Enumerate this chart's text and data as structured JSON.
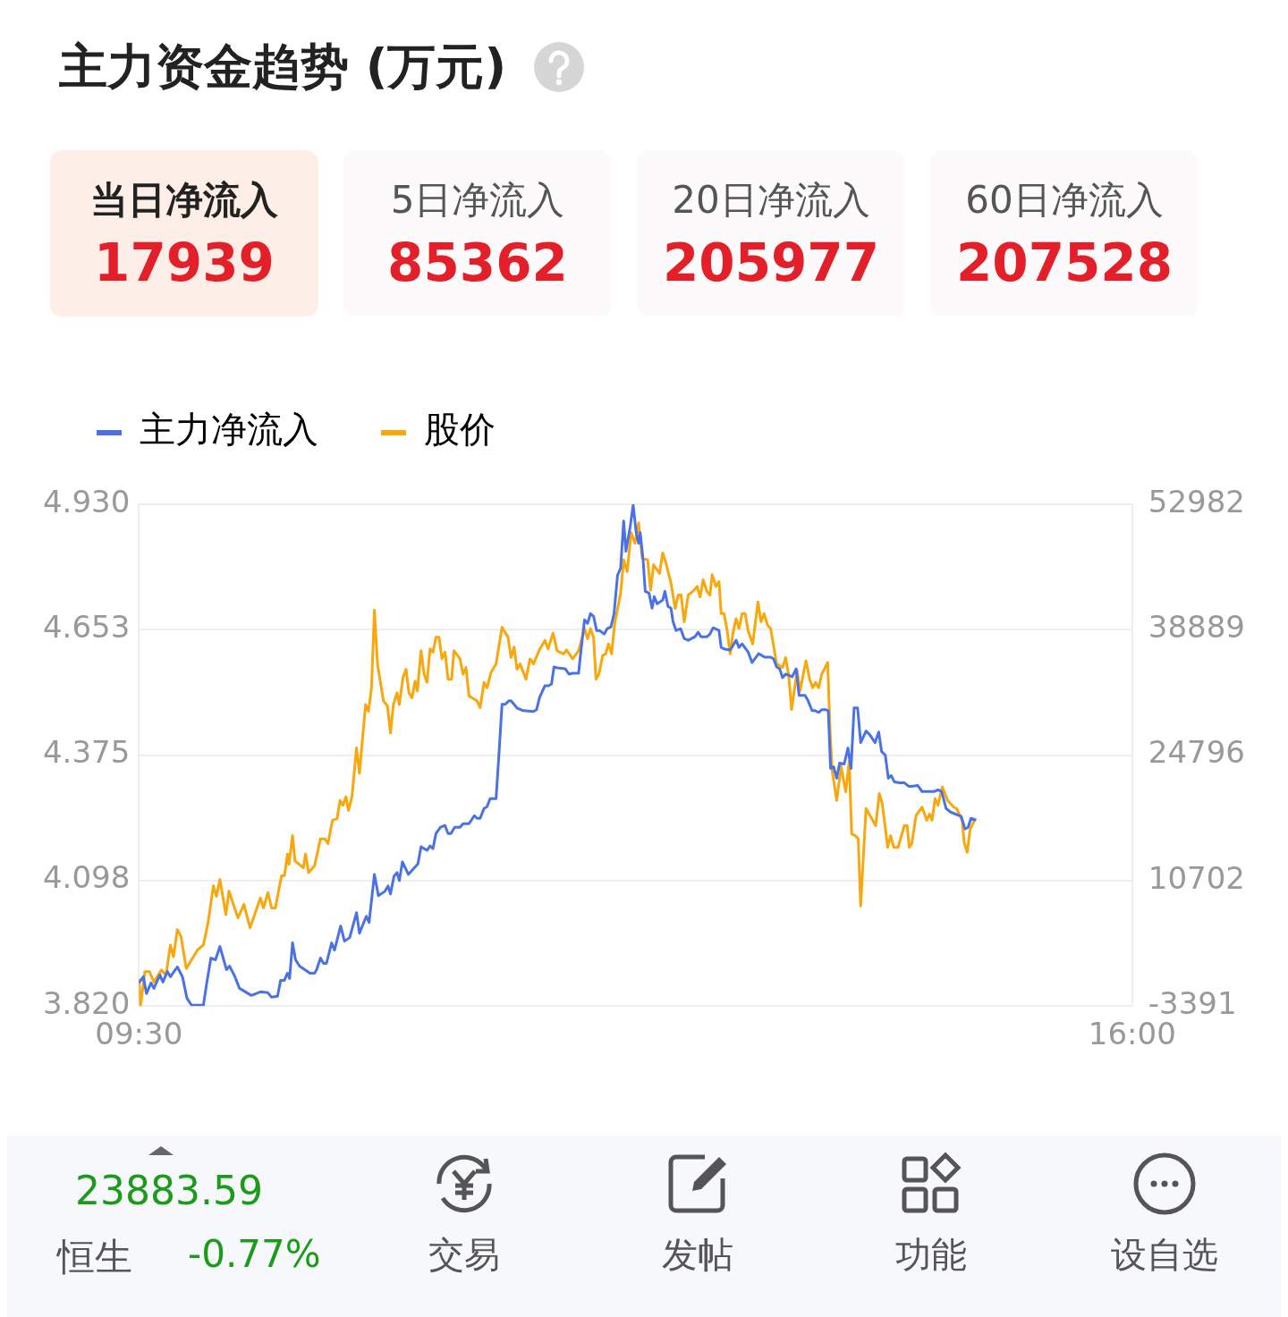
{
  "chart_data": {
    "type": "line",
    "title": "主力资金趋势 (万元)",
    "annotations": [
      "当日净流入",
      "17939",
      "5日净流入",
      "85362",
      "20日净流入",
      "205977",
      "60日净流入",
      "207528",
      "23883.59",
      "恒生",
      "-0.77%",
      "交易",
      "发帖",
      "功能",
      "设自选"
    ],
    "xlim": [
      9.5,
      16
    ],
    "xticks": [
      {
        "value": 9.5,
        "label": "09:30"
      },
      {
        "value": 16,
        "label": "16:00"
      }
    ],
    "ylim": [
      3.82,
      4.93
    ],
    "yticks": [
      {
        "value": 3.82,
        "label": "3.820"
      },
      4.098,
      4.375,
      4.653,
      {
        "value": 4.93,
        "label": "4.930"
      }
    ],
    "y2lim": [
      -3391,
      52982
    ],
    "y2ticks": [
      -3391,
      10702,
      24796,
      38889,
      52982
    ],
    "grid": "y",
    "legend": "top left",
    "marker": "none",
    "line_style": "solid",
    "series": [
      {
        "name": "主力净流入",
        "color": "#4a72e6",
        "axis": "y2",
        "x": [
          9.5,
          9.529,
          9.549,
          9.579,
          9.598,
          9.637,
          9.657,
          9.686,
          9.706,
          9.751,
          9.785,
          9.814,
          9.844,
          9.893,
          9.922,
          9.942,
          9.971,
          10.001,
          10.03,
          10.073,
          10.093,
          10.128,
          10.158,
          10.197,
          10.236,
          10.295,
          10.344,
          10.368,
          10.407,
          10.427,
          10.452,
          10.472,
          10.486,
          10.505,
          10.525,
          10.551,
          10.619,
          10.649,
          10.663,
          10.688,
          10.708,
          10.727,
          10.761,
          10.78,
          10.82,
          10.845,
          10.879,
          10.924,
          10.943,
          10.988,
          11.006,
          11.041,
          11.067,
          11.11,
          11.13,
          11.146,
          11.169,
          11.189,
          11.204,
          11.224,
          11.263,
          11.316,
          11.326,
          11.346,
          11.385,
          11.405,
          11.424,
          11.444,
          11.474,
          11.503,
          11.523,
          11.542,
          11.566,
          11.601,
          11.621,
          11.66,
          11.695,
          11.713,
          11.733,
          11.758,
          11.778,
          11.798,
          11.837,
          11.857,
          11.876,
          11.896,
          11.921,
          11.935,
          11.974,
          12.014,
          12.082,
          12.102,
          12.122,
          12.157,
          12.181,
          12.2,
          12.216,
          12.239,
          12.289,
          12.314,
          12.338,
          12.377,
          12.393,
          12.416,
          12.436,
          12.455,
          12.475,
          12.495,
          12.514,
          12.544,
          12.564,
          12.589,
          12.609,
          12.632,
          12.652,
          12.672,
          12.687,
          12.715,
          12.734,
          12.754,
          12.77,
          12.78,
          12.799,
          12.813,
          12.838,
          12.858,
          12.872,
          12.891,
          12.927,
          12.942,
          12.962,
          12.982,
          12.995,
          13.015,
          13.045,
          13.068,
          13.094,
          13.139,
          13.159,
          13.178,
          13.217,
          13.237,
          13.257,
          13.296,
          13.31,
          13.335,
          13.369,
          13.408,
          13.427,
          13.447,
          13.486,
          13.512,
          13.555,
          13.594,
          13.634,
          13.653,
          13.673,
          13.693,
          13.712,
          13.732,
          13.775,
          13.801,
          13.82,
          13.859,
          13.879,
          13.905,
          13.924,
          13.948,
          13.968,
          13.997,
          14.011,
          14.026,
          14.046,
          14.066,
          14.085,
          14.115,
          14.14,
          14.16,
          14.18,
          14.203,
          14.223,
          14.258,
          14.282,
          14.317,
          14.341,
          14.36,
          14.384,
          14.404,
          14.423,
          14.443,
          14.478,
          14.508,
          14.537,
          14.557,
          14.596,
          14.625,
          14.704,
          14.729,
          14.753,
          14.782,
          14.812,
          14.841,
          14.881,
          14.906,
          14.926,
          14.945,
          14.979
        ],
        "values": [
          -800,
          -100,
          -2000,
          -800,
          -1400,
          100,
          -700,
          500,
          -100,
          1000,
          -100,
          -2500,
          -3300,
          -3300,
          -3300,
          -1000,
          2000,
          1800,
          3300,
          700,
          1100,
          -100,
          -1400,
          -1800,
          -2200,
          -1800,
          -1900,
          -2400,
          -2300,
          -500,
          -500,
          300,
          -300,
          3700,
          1800,
          1100,
          300,
          300,
          700,
          2000,
          1400,
          1400,
          3700,
          2900,
          5600,
          3900,
          4300,
          7100,
          4800,
          6700,
          6000,
          11400,
          9000,
          9500,
          10100,
          9200,
          11200,
          11600,
          10700,
          12800,
          11400,
          12400,
          12600,
          14500,
          14100,
          14600,
          14300,
          16000,
          16700,
          16900,
          16000,
          16000,
          16700,
          16700,
          17100,
          17100,
          18000,
          17700,
          17700,
          18800,
          19000,
          19900,
          19900,
          25200,
          30500,
          30500,
          30900,
          30900,
          30100,
          29800,
          29700,
          29900,
          31300,
          32600,
          32600,
          32800,
          34700,
          34600,
          34500,
          33900,
          34000,
          34000,
          36600,
          40000,
          39600,
          40700,
          40400,
          38800,
          38800,
          38400,
          39000,
          39200,
          40700,
          45000,
          45800,
          51100,
          47700,
          50500,
          52900,
          49800,
          48600,
          49800,
          46800,
          43200,
          43000,
          41300,
          42600,
          41800,
          42200,
          43200,
          41500,
          41300,
          39800,
          38800,
          39000,
          37900,
          37700,
          38100,
          38600,
          38100,
          38100,
          38400,
          39100,
          38800,
          36900,
          36700,
          36600,
          37700,
          36900,
          37300,
          36400,
          35200,
          36200,
          35800,
          35800,
          35600,
          34700,
          34500,
          33500,
          33900,
          33600,
          34500,
          31500,
          31500,
          30900,
          29800,
          29800,
          29600,
          29900,
          29900,
          29800,
          23300,
          23500,
          22200,
          23900,
          23800,
          25600,
          23300,
          30100,
          30100,
          26200,
          27500,
          27100,
          26200,
          27400,
          25200,
          24800,
          22200,
          22500,
          21800,
          21700,
          21700,
          21300,
          21300,
          21400,
          20700,
          20700,
          20900,
          20700,
          18800,
          18400,
          18200,
          17900,
          16500,
          16700,
          17700,
          17500
        ]
      },
      {
        "name": "股价",
        "color": "#f8a70c",
        "x": [
          9.5,
          9.51,
          9.539,
          9.569,
          9.598,
          9.647,
          9.677,
          9.706,
          9.726,
          9.751,
          9.775,
          9.81,
          9.883,
          9.922,
          9.952,
          9.987,
          10.007,
          10.03,
          10.069,
          10.089,
          10.148,
          10.187,
          10.227,
          10.295,
          10.315,
          10.344,
          10.368,
          10.393,
          10.433,
          10.452,
          10.472,
          10.482,
          10.505,
          10.521,
          10.576,
          10.59,
          10.61,
          10.649,
          10.688,
          10.717,
          10.737,
          10.766,
          10.796,
          10.816,
          10.835,
          10.855,
          10.871,
          10.894,
          10.924,
          10.943,
          10.983,
          11.002,
          11.022,
          11.041,
          11.061,
          11.1,
          11.126,
          11.146,
          11.165,
          11.189,
          11.204,
          11.228,
          11.248,
          11.267,
          11.287,
          11.307,
          11.322,
          11.346,
          11.366,
          11.385,
          11.405,
          11.424,
          11.444,
          11.464,
          11.483,
          11.503,
          11.523,
          11.546,
          11.562,
          11.601,
          11.621,
          11.64,
          11.66,
          11.713,
          11.733,
          11.758,
          11.778,
          11.804,
          11.837,
          11.876,
          11.915,
          11.935,
          11.955,
          11.974,
          11.994,
          12.033,
          12.059,
          12.082,
          12.118,
          12.157,
          12.177,
          12.21,
          12.236,
          12.279,
          12.298,
          12.338,
          12.377,
          12.416,
          12.436,
          12.455,
          12.475,
          12.491,
          12.51,
          12.534,
          12.554,
          12.573,
          12.593,
          12.613,
          12.652,
          12.672,
          12.695,
          12.721,
          12.746,
          12.77,
          12.793,
          12.829,
          12.848,
          12.868,
          12.907,
          12.927,
          12.946,
          12.982,
          13.009,
          13.029,
          13.048,
          13.068,
          13.094,
          13.133,
          13.153,
          13.172,
          13.192,
          13.217,
          13.237,
          13.251,
          13.276,
          13.296,
          13.31,
          13.329,
          13.349,
          13.369,
          13.388,
          13.408,
          13.427,
          13.447,
          13.467,
          13.486,
          13.516,
          13.551,
          13.571,
          13.591,
          13.614,
          13.634,
          13.653,
          13.673,
          13.712,
          13.732,
          13.752,
          13.771,
          13.807,
          13.826,
          13.865,
          13.889,
          13.909,
          13.928,
          13.948,
          13.968,
          14.007,
          14.022,
          14.036,
          14.066,
          14.095,
          14.125,
          14.148,
          14.164,
          14.187,
          14.207,
          14.223,
          14.258,
          14.321,
          14.345,
          14.364,
          14.4,
          14.419,
          14.439,
          14.468,
          14.508,
          14.527,
          14.541,
          14.557,
          14.586,
          14.625,
          14.655,
          14.674,
          14.69,
          14.71,
          14.729,
          14.757,
          14.792,
          14.832,
          14.851,
          14.887,
          14.9,
          14.92,
          14.94,
          14.969
        ],
        "values": [
          3.881,
          3.82,
          3.896,
          3.896,
          3.873,
          3.9,
          3.888,
          3.955,
          3.929,
          3.989,
          3.974,
          3.903,
          3.944,
          3.955,
          4.004,
          4.086,
          4.063,
          4.1,
          4.022,
          4.074,
          4.015,
          4.045,
          3.993,
          4.059,
          4.037,
          4.071,
          4.037,
          4.037,
          4.108,
          4.108,
          4.156,
          4.134,
          4.197,
          4.141,
          4.126,
          4.156,
          4.115,
          4.13,
          4.19,
          4.19,
          4.179,
          4.231,
          4.234,
          4.275,
          4.264,
          4.283,
          4.253,
          4.283,
          4.391,
          4.335,
          4.487,
          4.472,
          4.524,
          4.696,
          4.577,
          4.495,
          4.484,
          4.424,
          4.487,
          4.513,
          4.487,
          4.547,
          4.565,
          4.513,
          4.502,
          4.539,
          4.517,
          4.606,
          4.554,
          4.536,
          4.61,
          4.603,
          4.636,
          4.636,
          4.588,
          4.603,
          4.543,
          4.543,
          4.606,
          4.588,
          4.554,
          4.569,
          4.506,
          4.495,
          4.48,
          4.536,
          4.524,
          4.558,
          4.577,
          4.658,
          4.636,
          4.591,
          4.614,
          4.565,
          4.577,
          4.543,
          4.588,
          4.577,
          4.606,
          4.629,
          4.61,
          4.645,
          4.606,
          4.599,
          4.608,
          4.588,
          4.606,
          4.655,
          4.632,
          4.655,
          4.636,
          4.543,
          4.554,
          4.595,
          4.599,
          4.621,
          4.599,
          4.666,
          4.733,
          4.807,
          4.781,
          4.867,
          4.844,
          4.889,
          4.811,
          4.807,
          4.74,
          4.796,
          4.777,
          4.822,
          4.803,
          4.755,
          4.699,
          4.729,
          4.729,
          4.67,
          4.729,
          4.74,
          4.748,
          4.725,
          4.763,
          4.737,
          4.729,
          4.774,
          4.748,
          4.759,
          4.688,
          4.688,
          4.651,
          4.599,
          4.647,
          4.677,
          4.655,
          4.688,
          4.688,
          4.651,
          4.621,
          4.714,
          4.67,
          4.688,
          4.662,
          4.655,
          4.617,
          4.577,
          4.569,
          4.591,
          4.551,
          4.476,
          4.562,
          4.517,
          4.584,
          4.543,
          4.524,
          4.536,
          4.524,
          4.554,
          4.58,
          4.435,
          4.342,
          4.275,
          4.35,
          4.294,
          4.361,
          4.201,
          4.197,
          4.19,
          4.041,
          4.257,
          4.219,
          4.29,
          4.268,
          4.171,
          4.197,
          4.171,
          4.171,
          4.219,
          4.219,
          4.171,
          4.179,
          4.242,
          4.26,
          4.231,
          4.245,
          4.231,
          4.279,
          4.264,
          4.305,
          4.275,
          4.26,
          4.257,
          4.231,
          4.182,
          4.16,
          4.212,
          4.231
        ]
      }
    ]
  }
}
